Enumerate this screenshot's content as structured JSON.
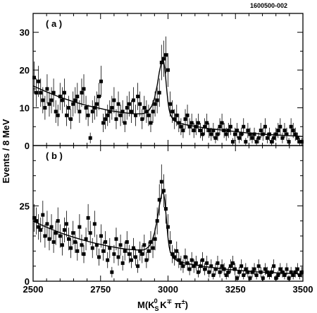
{
  "figure": {
    "code": "1600500-002",
    "ylabel": "Events / 8 MeV",
    "xlabel": {
      "main": "M(K",
      "sub": "S",
      "sup": "0",
      "mid": " K",
      "sup2": "∓",
      "mid2": " π",
      "sup3": "±",
      "end": ")"
    }
  },
  "chart_data": [
    {
      "type": "scatter",
      "panel_label": "( a )",
      "xlim": [
        2500,
        3500
      ],
      "ylim": [
        0,
        35
      ],
      "x_ticks": [
        2500,
        2750,
        3000,
        3250,
        3500
      ],
      "x_tick_labels": [
        "2500",
        "2750",
        "3000",
        "3250",
        "3500"
      ],
      "y_ticks": [
        0,
        10,
        20,
        30
      ],
      "y_tick_labels": [
        "0",
        "10",
        "20",
        "30"
      ],
      "series": [
        {
          "x": [
            2504,
            2512,
            2520,
            2528,
            2536,
            2544,
            2552,
            2560,
            2568,
            2576,
            2584,
            2592,
            2600,
            2608,
            2616,
            2624,
            2632,
            2640,
            2648,
            2656,
            2664,
            2672,
            2680,
            2688,
            2696,
            2704,
            2712,
            2720,
            2728,
            2736,
            2744,
            2752,
            2760,
            2768,
            2776,
            2784,
            2792,
            2800,
            2808,
            2816,
            2824,
            2832,
            2840,
            2848,
            2856,
            2864,
            2872,
            2880,
            2888,
            2896,
            2904,
            2912,
            2920,
            2928,
            2936,
            2944,
            2952,
            2960,
            2968,
            2976,
            2984,
            2992,
            3000,
            3008,
            3016,
            3024,
            3032,
            3040,
            3048,
            3056,
            3064,
            3072,
            3080,
            3088,
            3096,
            3104,
            3112,
            3120,
            3128,
            3136,
            3144,
            3152,
            3160,
            3168,
            3176,
            3184,
            3192,
            3200,
            3208,
            3216,
            3224,
            3232,
            3240,
            3248,
            3256,
            3264,
            3272,
            3280,
            3288,
            3296,
            3304,
            3312,
            3320,
            3328,
            3336,
            3344,
            3352,
            3360,
            3368,
            3376,
            3384,
            3392,
            3400,
            3408,
            3416,
            3424,
            3432,
            3440,
            3448,
            3456,
            3464,
            3472,
            3480,
            3488,
            3496
          ],
          "y": [
            18,
            14,
            17,
            14,
            12,
            10,
            15,
            11,
            12,
            14,
            9,
            8,
            13,
            12,
            14,
            8,
            10,
            7,
            11,
            12,
            13,
            9,
            14,
            15,
            10,
            8,
            2,
            9,
            10,
            11,
            13,
            17,
            6,
            7,
            8,
            9,
            10,
            12,
            7,
            11,
            8,
            9,
            6,
            10,
            11,
            9,
            12,
            8,
            13,
            11,
            7,
            10,
            9,
            8,
            6,
            9,
            11,
            12,
            14,
            22,
            23,
            24,
            20,
            11,
            9,
            7,
            8,
            6,
            5,
            4,
            7,
            8,
            5,
            6,
            4,
            5,
            6,
            4,
            3,
            5,
            6,
            4,
            3,
            4,
            2,
            3,
            5,
            6,
            4,
            3,
            4,
            5,
            1,
            3,
            4,
            2,
            3,
            5,
            1,
            4,
            3,
            2,
            3,
            1,
            2,
            4,
            3,
            5,
            2,
            3,
            1,
            2,
            3,
            4,
            5,
            2,
            4,
            3,
            1,
            5,
            4,
            3,
            2,
            1,
            1
          ]
        }
      ],
      "fit_curve": {
        "x": [
          2500,
          2525,
          2550,
          2575,
          2600,
          2625,
          2650,
          2675,
          2700,
          2725,
          2750,
          2775,
          2800,
          2825,
          2850,
          2875,
          2900,
          2910,
          2920,
          2930,
          2940,
          2950,
          2960,
          2968,
          2976,
          2980,
          2984,
          2988,
          2992,
          2996,
          3000,
          3004,
          3008,
          3016,
          3024,
          3032,
          3040,
          3050,
          3060,
          3075,
          3100,
          3125,
          3150,
          3175,
          3200,
          3225,
          3250,
          3275,
          3300,
          3325,
          3350,
          3375,
          3400,
          3425,
          3450,
          3475,
          3500
        ],
        "y": [
          15.8,
          15.0,
          14.2,
          13.5,
          12.8,
          12.2,
          11.6,
          11.1,
          10.6,
          10.2,
          9.8,
          9.4,
          9.1,
          8.8,
          8.6,
          8.4,
          8.4,
          8.5,
          8.8,
          9.4,
          10.5,
          12.5,
          16.0,
          19.5,
          22.2,
          22.6,
          22.2,
          20.5,
          17.5,
          14.2,
          11.5,
          9.6,
          8.4,
          7.2,
          6.6,
          6.2,
          6.0,
          5.8,
          5.6,
          5.4,
          5.1,
          4.8,
          4.5,
          4.3,
          4.1,
          3.9,
          3.7,
          3.5,
          3.3,
          3.2,
          3.0,
          2.9,
          2.8,
          2.7,
          2.6,
          2.5,
          2.4
        ]
      }
    },
    {
      "type": "scatter",
      "panel_label": "( b )",
      "xlim": [
        2500,
        3500
      ],
      "ylim": [
        0,
        45
      ],
      "x_ticks": [
        2500,
        2750,
        3000,
        3250,
        3500
      ],
      "x_tick_labels": [
        "2500",
        "2750",
        "3000",
        "3250",
        "3500"
      ],
      "y_ticks": [
        0,
        25
      ],
      "y_tick_labels": [
        "0",
        "25"
      ],
      "series": [
        {
          "x": [
            2504,
            2512,
            2520,
            2528,
            2536,
            2544,
            2552,
            2560,
            2568,
            2576,
            2584,
            2592,
            2600,
            2608,
            2616,
            2624,
            2632,
            2640,
            2648,
            2656,
            2664,
            2672,
            2680,
            2688,
            2696,
            2704,
            2712,
            2720,
            2728,
            2736,
            2744,
            2752,
            2760,
            2768,
            2776,
            2784,
            2792,
            2800,
            2808,
            2816,
            2824,
            2832,
            2840,
            2848,
            2856,
            2864,
            2872,
            2880,
            2888,
            2896,
            2904,
            2912,
            2920,
            2928,
            2936,
            2944,
            2952,
            2960,
            2968,
            2976,
            2984,
            2992,
            3000,
            3008,
            3016,
            3024,
            3032,
            3040,
            3048,
            3056,
            3064,
            3072,
            3080,
            3088,
            3096,
            3104,
            3112,
            3120,
            3128,
            3136,
            3144,
            3152,
            3160,
            3168,
            3176,
            3184,
            3192,
            3200,
            3208,
            3216,
            3224,
            3232,
            3240,
            3248,
            3256,
            3264,
            3272,
            3280,
            3288,
            3296,
            3304,
            3312,
            3320,
            3328,
            3336,
            3344,
            3352,
            3360,
            3368,
            3376,
            3384,
            3392,
            3400,
            3408,
            3416,
            3424,
            3432,
            3440,
            3448,
            3456,
            3464,
            3472,
            3480,
            3488,
            3496
          ],
          "y": [
            21,
            20,
            18,
            17,
            22,
            15,
            19,
            14,
            18,
            13,
            16,
            20,
            15,
            12,
            17,
            19,
            14,
            11,
            16,
            13,
            10,
            18,
            12,
            9,
            14,
            21,
            16,
            11,
            19,
            12,
            8,
            15,
            10,
            13,
            7,
            11,
            3,
            9,
            14,
            8,
            12,
            6,
            10,
            13,
            9,
            7,
            11,
            8,
            5,
            10,
            9,
            12,
            7,
            10,
            13,
            11,
            14,
            20,
            27,
            33,
            30,
            24,
            18,
            13,
            9,
            8,
            10,
            7,
            6,
            5,
            8,
            6,
            4,
            7,
            5,
            6,
            3,
            5,
            7,
            4,
            6,
            3,
            5,
            2,
            4,
            6,
            3,
            5,
            4,
            2,
            3,
            5,
            6,
            4,
            1,
            3,
            5,
            2,
            4,
            3,
            1,
            3,
            4,
            2,
            5,
            3,
            1,
            4,
            3,
            2,
            3,
            5,
            1,
            2,
            4,
            3,
            2,
            4,
            1,
            3,
            2,
            3,
            4,
            2,
            3
          ]
        }
      ],
      "fit_curve": {
        "x": [
          2500,
          2525,
          2550,
          2575,
          2600,
          2625,
          2650,
          2675,
          2700,
          2725,
          2750,
          2775,
          2800,
          2825,
          2850,
          2875,
          2900,
          2910,
          2920,
          2930,
          2940,
          2950,
          2960,
          2968,
          2976,
          2980,
          2984,
          2988,
          2992,
          2996,
          3000,
          3004,
          3008,
          3016,
          3024,
          3032,
          3040,
          3050,
          3060,
          3075,
          3100,
          3125,
          3150,
          3175,
          3200,
          3225,
          3250,
          3275,
          3300,
          3325,
          3350,
          3375,
          3400,
          3425,
          3450,
          3475,
          3500
        ],
        "y": [
          20.0,
          18.9,
          17.9,
          17.0,
          16.1,
          15.3,
          14.6,
          13.9,
          13.3,
          12.7,
          12.2,
          11.7,
          11.3,
          10.9,
          10.6,
          10.4,
          10.3,
          10.4,
          10.8,
          11.6,
          13.2,
          16.0,
          20.5,
          25.0,
          28.7,
          29.5,
          29.0,
          26.8,
          22.8,
          18.3,
          14.4,
          11.6,
          9.8,
          8.2,
          7.4,
          6.9,
          6.6,
          6.3,
          6.1,
          5.8,
          5.4,
          5.0,
          4.7,
          4.4,
          4.1,
          3.9,
          3.7,
          3.5,
          3.3,
          3.1,
          3.0,
          2.9,
          2.8,
          2.7,
          2.6,
          2.5,
          2.4
        ]
      }
    }
  ]
}
